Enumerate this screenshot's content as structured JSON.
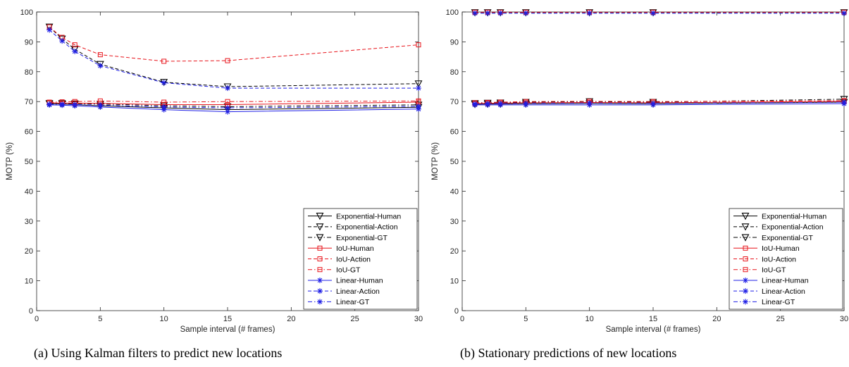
{
  "captions": {
    "a": "(a) Using Kalman filters to predict new locations",
    "b": "(b) Stationary predictions of new locations"
  },
  "chart_data": [
    {
      "type": "line",
      "xlabel": "Sample interval (# frames)",
      "ylabel": "MOTP (%)",
      "xlim": [
        0,
        30
      ],
      "ylim": [
        0,
        100
      ],
      "xticks": [
        0,
        5,
        10,
        15,
        20,
        25,
        30
      ],
      "yticks": [
        0,
        10,
        20,
        30,
        40,
        50,
        60,
        70,
        80,
        90,
        100
      ],
      "grid": false,
      "legend_position": "bottom-right",
      "x": [
        1,
        2,
        3,
        5,
        10,
        15,
        30
      ],
      "series": [
        {
          "name": "Exponential-Human",
          "color": "#000000",
          "dash": "solid",
          "marker": "triangle",
          "values": [
            69.3,
            69.2,
            69.0,
            68.6,
            67.9,
            67.3,
            68.1
          ]
        },
        {
          "name": "Exponential-Action",
          "color": "#000000",
          "dash": "dash",
          "marker": "triangle",
          "values": [
            95.0,
            91.0,
            87.5,
            82.5,
            76.5,
            75.0,
            76.0
          ]
        },
        {
          "name": "Exponential-GT",
          "color": "#000000",
          "dash": "dashdot",
          "marker": "triangle",
          "values": [
            69.4,
            69.4,
            69.3,
            69.2,
            68.6,
            68.3,
            68.9
          ]
        },
        {
          "name": "IoU-Human",
          "color": "#e8141b",
          "dash": "solid",
          "marker": "square",
          "values": [
            69.6,
            69.5,
            69.5,
            69.4,
            69.0,
            69.0,
            69.8
          ]
        },
        {
          "name": "IoU-Action",
          "color": "#e8141b",
          "dash": "dash",
          "marker": "square",
          "values": [
            95.0,
            91.5,
            89.0,
            85.7,
            83.5,
            83.7,
            89.0
          ]
        },
        {
          "name": "IoU-GT",
          "color": "#e8141b",
          "dash": "dashdot",
          "marker": "square",
          "values": [
            69.8,
            69.9,
            70.0,
            70.2,
            69.8,
            70.0,
            70.2
          ]
        },
        {
          "name": "Linear-Human",
          "color": "#1f1fe6",
          "dash": "solid",
          "marker": "star",
          "values": [
            68.9,
            68.8,
            68.6,
            68.2,
            67.3,
            66.6,
            67.5
          ]
        },
        {
          "name": "Linear-Action",
          "color": "#1f1fe6",
          "dash": "dash",
          "marker": "star",
          "values": [
            94.0,
            90.3,
            86.8,
            82.0,
            76.3,
            74.5,
            74.5
          ]
        },
        {
          "name": "Linear-GT",
          "color": "#1f1fe6",
          "dash": "dashdot",
          "marker": "star",
          "values": [
            69.1,
            69.1,
            69.0,
            68.8,
            68.2,
            67.9,
            68.4
          ]
        }
      ]
    },
    {
      "type": "line",
      "xlabel": "Sample interval (# frames)",
      "ylabel": "MOTP (%)",
      "xlim": [
        0,
        30
      ],
      "ylim": [
        0,
        100
      ],
      "xticks": [
        0,
        5,
        10,
        15,
        20,
        25,
        30
      ],
      "yticks": [
        0,
        10,
        20,
        30,
        40,
        50,
        60,
        70,
        80,
        90,
        100
      ],
      "grid": false,
      "legend_position": "bottom-right",
      "x": [
        1,
        2,
        3,
        5,
        10,
        15,
        30
      ],
      "series": [
        {
          "name": "Exponential-Human",
          "color": "#000000",
          "dash": "solid",
          "marker": "triangle",
          "values": [
            69.1,
            69.2,
            69.2,
            69.3,
            69.4,
            69.3,
            69.8
          ]
        },
        {
          "name": "Exponential-Action",
          "color": "#000000",
          "dash": "dash",
          "marker": "triangle",
          "values": [
            99.8,
            99.8,
            99.8,
            99.8,
            99.8,
            99.8,
            99.8
          ]
        },
        {
          "name": "Exponential-GT",
          "color": "#000000",
          "dash": "dashdot",
          "marker": "triangle",
          "values": [
            69.4,
            69.5,
            69.6,
            69.8,
            70.0,
            69.8,
            70.8
          ]
        },
        {
          "name": "IoU-Human",
          "color": "#e8141b",
          "dash": "solid",
          "marker": "square",
          "values": [
            69.3,
            69.4,
            69.5,
            69.6,
            69.7,
            69.6,
            70.1
          ]
        },
        {
          "name": "IoU-Action",
          "color": "#e8141b",
          "dash": "dash",
          "marker": "square",
          "values": [
            99.9,
            99.9,
            99.9,
            99.9,
            99.9,
            99.9,
            99.9
          ]
        },
        {
          "name": "IoU-GT",
          "color": "#e8141b",
          "dash": "dashdot",
          "marker": "square",
          "values": [
            69.6,
            69.7,
            69.8,
            70.0,
            70.1,
            70.0,
            70.3
          ]
        },
        {
          "name": "Linear-Human",
          "color": "#1f1fe6",
          "dash": "solid",
          "marker": "star",
          "values": [
            68.9,
            68.9,
            68.9,
            68.9,
            68.9,
            68.9,
            69.3
          ]
        },
        {
          "name": "Linear-Action",
          "color": "#1f1fe6",
          "dash": "dash",
          "marker": "star",
          "values": [
            99.6,
            99.6,
            99.6,
            99.6,
            99.6,
            99.6,
            99.6
          ]
        },
        {
          "name": "Linear-GT",
          "color": "#1f1fe6",
          "dash": "dashdot",
          "marker": "star",
          "values": [
            69.2,
            69.3,
            69.3,
            69.4,
            69.5,
            69.4,
            69.8
          ]
        }
      ]
    }
  ]
}
